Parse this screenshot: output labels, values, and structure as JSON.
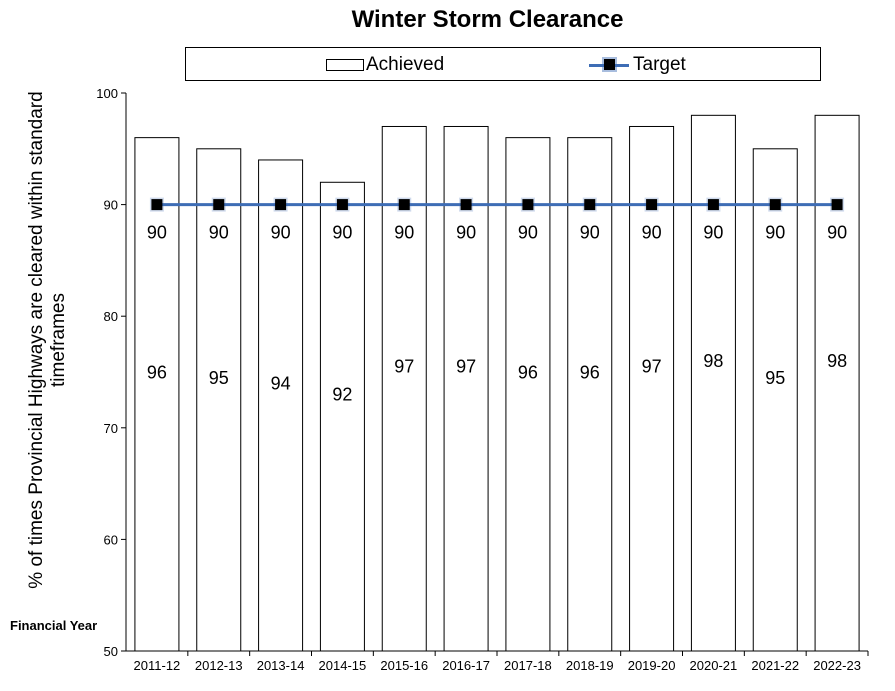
{
  "chart_data": {
    "type": "bar",
    "title": "Winter Storm Clearance",
    "xlabel": "Financial Year",
    "ylabel": "% of times Provincial Highways are cleared within standard timeframes",
    "ylim": [
      50,
      100
    ],
    "yticks": [
      "50",
      "60",
      "70",
      "80",
      "90",
      "100"
    ],
    "categories": [
      "2011-12",
      "2012-13",
      "2013-14",
      "2014-15",
      "2015-16",
      "2016-17",
      "2017-18",
      "2018-19",
      "2019-20",
      "2020-21",
      "2021-22",
      "2022-23"
    ],
    "series": [
      {
        "name": "Achieved",
        "type": "bar",
        "values": [
          96,
          95,
          94,
          92,
          97,
          97,
          96,
          96,
          97,
          98,
          95,
          98
        ],
        "color": "#ffffff"
      },
      {
        "name": "Target",
        "type": "line",
        "values": [
          90,
          90,
          90,
          90,
          90,
          90,
          90,
          90,
          90,
          90,
          90,
          90
        ],
        "color": "#3E6DB5"
      }
    ],
    "legend_position": "top",
    "grid": false
  }
}
